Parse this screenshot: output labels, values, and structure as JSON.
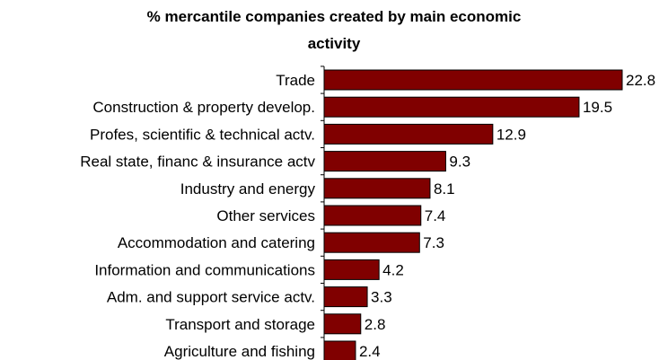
{
  "chart_data": {
    "type": "bar",
    "orientation": "horizontal",
    "title_line1": "% mercantile companies created  by main economic",
    "title_line2": "activity",
    "categories": [
      "Trade",
      "Construction & property develop.",
      "Profes, scientific & technical actv.",
      "Real state, financ & insurance actv",
      "Industry and energy",
      "Other services",
      "Accommodation and catering",
      "Information and communications",
      "Adm. and support service actv.",
      "Transport and storage",
      "Agriculture and fishing"
    ],
    "values": [
      22.8,
      19.5,
      12.9,
      9.3,
      8.1,
      7.4,
      7.3,
      4.2,
      3.3,
      2.8,
      2.4
    ],
    "value_labels": [
      "22.8",
      "19.5",
      "12.9",
      "9.3",
      "8.1",
      "7.4",
      "7.3",
      "4.2",
      "3.3",
      "2.8",
      "2.4"
    ],
    "xlim": [
      0,
      22.8
    ],
    "bar_color": "#800000",
    "grid": false,
    "legend": "none"
  }
}
